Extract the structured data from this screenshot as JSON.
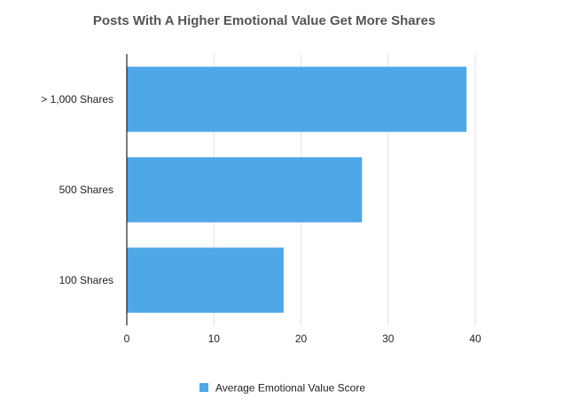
{
  "chart_data": {
    "type": "bar",
    "orientation": "horizontal",
    "title": "Posts With A Higher Emotional Value Get More Shares",
    "categories": [
      "> 1,000 Shares",
      "500 Shares",
      "100 Shares"
    ],
    "series": [
      {
        "name": "Average Emotional Value Score",
        "values": [
          39,
          27,
          18
        ],
        "color": "#4ea7e6"
      }
    ],
    "xlim": [
      0,
      40
    ],
    "xticks": [
      0,
      10,
      20,
      30,
      40
    ],
    "xlabel": "",
    "ylabel": "",
    "grid": true,
    "legend_position": "bottom"
  }
}
